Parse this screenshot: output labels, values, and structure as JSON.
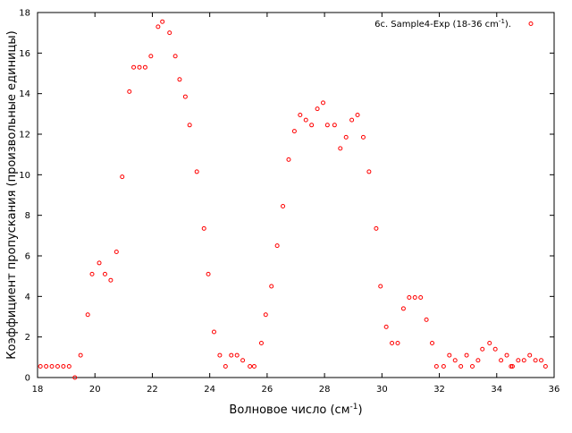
{
  "chart_data": {
    "type": "scatter",
    "xlabel": "Волновое число (см",
    "xlabel_sup": "-1",
    "xlabel_end": ")",
    "ylabel": "Коэффициент пропускания (произвольные единицы)",
    "xlim": [
      18,
      36
    ],
    "ylim": [
      0,
      18
    ],
    "x_ticks": [
      18,
      20,
      22,
      24,
      26,
      28,
      30,
      32,
      34,
      36
    ],
    "y_ticks": [
      0,
      2,
      4,
      6,
      8,
      10,
      12,
      14,
      16,
      18
    ],
    "grid": false,
    "legend_position": "top-right",
    "series": [
      {
        "name": "6c. Sample4-Exp (18-36 cm",
        "name_sup": "-1",
        "name_end": ").",
        "color": "#ff0000",
        "marker": "open-circle",
        "points": [
          [
            18.1,
            0.55
          ],
          [
            18.3,
            0.55
          ],
          [
            18.5,
            0.55
          ],
          [
            18.7,
            0.55
          ],
          [
            18.9,
            0.55
          ],
          [
            19.1,
            0.55
          ],
          [
            19.3,
            0.0
          ],
          [
            19.5,
            1.1
          ],
          [
            19.75,
            3.1
          ],
          [
            19.9,
            5.1
          ],
          [
            20.15,
            5.65
          ],
          [
            20.35,
            5.1
          ],
          [
            20.55,
            4.8
          ],
          [
            20.75,
            6.2
          ],
          [
            20.95,
            9.9
          ],
          [
            21.2,
            14.1
          ],
          [
            21.35,
            15.3
          ],
          [
            21.55,
            15.3
          ],
          [
            21.75,
            15.3
          ],
          [
            21.95,
            15.85
          ],
          [
            22.2,
            17.3
          ],
          [
            22.35,
            17.55
          ],
          [
            22.6,
            17.0
          ],
          [
            22.8,
            15.85
          ],
          [
            22.95,
            14.7
          ],
          [
            23.15,
            13.85
          ],
          [
            23.3,
            12.45
          ],
          [
            23.55,
            10.15
          ],
          [
            23.8,
            7.35
          ],
          [
            23.95,
            5.1
          ],
          [
            24.15,
            2.25
          ],
          [
            24.35,
            1.1
          ],
          [
            24.55,
            0.55
          ],
          [
            24.75,
            1.1
          ],
          [
            24.95,
            1.1
          ],
          [
            25.15,
            0.85
          ],
          [
            25.4,
            0.55
          ],
          [
            25.55,
            0.55
          ],
          [
            25.8,
            1.7
          ],
          [
            25.95,
            3.1
          ],
          [
            26.15,
            4.5
          ],
          [
            26.35,
            6.5
          ],
          [
            26.55,
            8.45
          ],
          [
            26.75,
            10.75
          ],
          [
            26.95,
            12.15
          ],
          [
            27.15,
            12.95
          ],
          [
            27.35,
            12.7
          ],
          [
            27.55,
            12.45
          ],
          [
            27.75,
            13.25
          ],
          [
            27.95,
            13.55
          ],
          [
            28.1,
            12.45
          ],
          [
            28.35,
            12.45
          ],
          [
            28.55,
            11.3
          ],
          [
            28.75,
            11.85
          ],
          [
            28.95,
            12.7
          ],
          [
            29.15,
            12.95
          ],
          [
            29.35,
            11.85
          ],
          [
            29.55,
            10.15
          ],
          [
            29.8,
            7.35
          ],
          [
            29.95,
            4.5
          ],
          [
            30.15,
            2.5
          ],
          [
            30.35,
            1.7
          ],
          [
            30.55,
            1.7
          ],
          [
            30.75,
            3.4
          ],
          [
            30.95,
            3.95
          ],
          [
            31.15,
            3.95
          ],
          [
            31.35,
            3.95
          ],
          [
            31.55,
            2.85
          ],
          [
            31.75,
            1.7
          ],
          [
            31.9,
            0.55
          ],
          [
            32.15,
            0.55
          ],
          [
            32.35,
            1.1
          ],
          [
            32.55,
            0.85
          ],
          [
            32.75,
            0.55
          ],
          [
            32.95,
            1.1
          ],
          [
            33.15,
            0.55
          ],
          [
            33.35,
            0.85
          ],
          [
            33.5,
            1.4
          ],
          [
            33.75,
            1.7
          ],
          [
            33.95,
            1.4
          ],
          [
            34.15,
            0.85
          ],
          [
            34.35,
            1.1
          ],
          [
            34.5,
            0.55
          ],
          [
            34.55,
            0.55
          ],
          [
            34.75,
            0.85
          ],
          [
            34.95,
            0.85
          ],
          [
            35.15,
            1.1
          ],
          [
            35.35,
            0.85
          ],
          [
            35.55,
            0.85
          ],
          [
            35.7,
            0.55
          ]
        ]
      }
    ]
  }
}
